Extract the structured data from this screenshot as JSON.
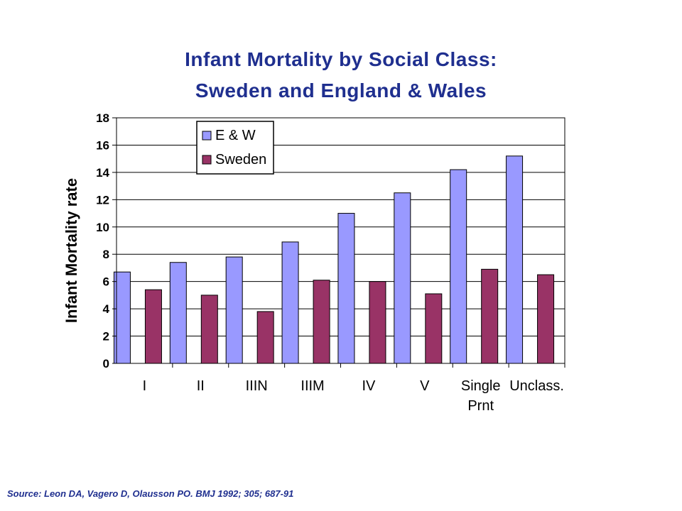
{
  "chart_data": {
    "type": "bar",
    "title_line1": "Infant Mortality by Social Class:",
    "title_line2": "Sweden and England & Wales",
    "ylabel": "Infant Mortality rate",
    "xlabel": "",
    "categories": [
      "I",
      "II",
      "IIIN",
      "IIIM",
      "IV",
      "V",
      "Single Prnt",
      "Unclass."
    ],
    "series": [
      {
        "name": "E & W",
        "color": "#9999ff",
        "values": [
          6.7,
          7.4,
          7.8,
          8.9,
          11.0,
          12.5,
          14.2,
          15.2
        ]
      },
      {
        "name": "Sweden",
        "color": "#993366",
        "values": [
          5.4,
          5.0,
          3.8,
          6.1,
          6.0,
          5.1,
          6.9,
          6.5
        ]
      }
    ],
    "ylim": [
      0,
      18
    ],
    "yticks": [
      0,
      2,
      4,
      6,
      8,
      10,
      12,
      14,
      16,
      18
    ],
    "grid": true,
    "legend_position": "top-left"
  },
  "source": "Source: Leon DA, Vagero D, Olausson PO. BMJ 1992; 305; 687-91"
}
